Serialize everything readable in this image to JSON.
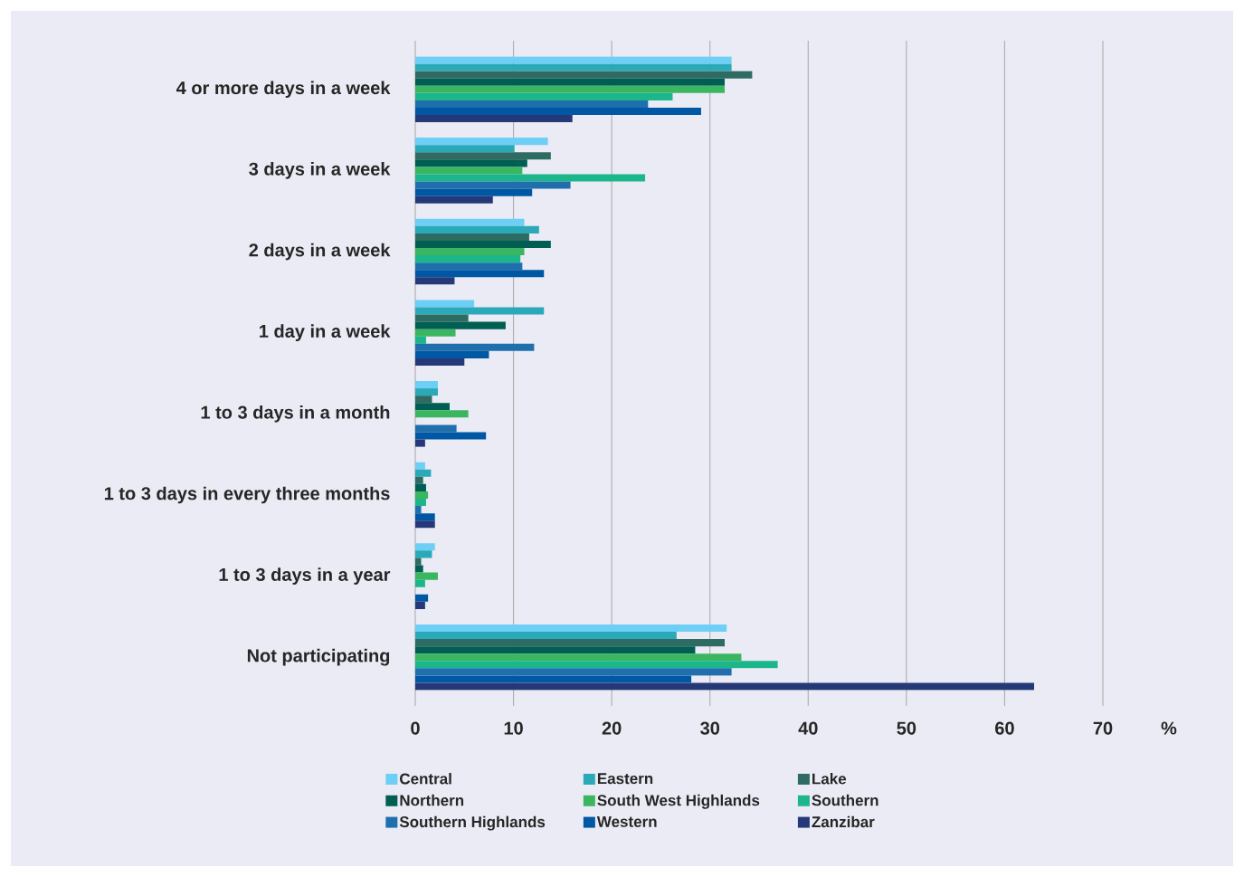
{
  "chart_data": {
    "type": "bar",
    "orientation": "horizontal",
    "categories": [
      "4 or more days in a week",
      "3 days in a week",
      "2 days in a week",
      "1 day in a week",
      "1 to 3 days in a month",
      "1 to 3 days in every three months",
      "1 to 3 days in a year",
      "Not participating"
    ],
    "series": [
      {
        "name": "Central",
        "color": "#6dcff6",
        "values": [
          32.2,
          13.5,
          11.1,
          6.0,
          2.3,
          1.0,
          2.0,
          31.7
        ]
      },
      {
        "name": "Eastern",
        "color": "#2aa9b8",
        "values": [
          32.2,
          10.1,
          12.6,
          13.1,
          2.3,
          1.6,
          1.7,
          26.6
        ]
      },
      {
        "name": "Lake",
        "color": "#2e6b63",
        "values": [
          34.3,
          13.8,
          11.6,
          5.4,
          1.7,
          0.8,
          0.6,
          31.5
        ]
      },
      {
        "name": "Northern",
        "color": "#005e53",
        "values": [
          31.5,
          11.4,
          13.8,
          9.2,
          3.5,
          1.1,
          0.8,
          28.5
        ]
      },
      {
        "name": "South West Highlands",
        "color": "#3bb660",
        "values": [
          31.5,
          10.9,
          11.1,
          4.1,
          5.4,
          1.3,
          2.3,
          33.2
        ]
      },
      {
        "name": "Southern",
        "color": "#1bb68a",
        "values": [
          26.2,
          23.4,
          10.7,
          1.1,
          null,
          1.1,
          1.0,
          36.9
        ]
      },
      {
        "name": "Southern Highlands",
        "color": "#1f6fad",
        "values": [
          23.7,
          15.8,
          10.9,
          12.1,
          4.2,
          0.6,
          null,
          32.2
        ]
      },
      {
        "name": "Western",
        "color": "#0057a3",
        "values": [
          29.1,
          11.9,
          13.1,
          7.5,
          7.2,
          2.0,
          1.3,
          28.1
        ]
      },
      {
        "name": "Zanzibar",
        "color": "#253878",
        "values": [
          16.0,
          7.9,
          4.0,
          5.0,
          1.0,
          2.0,
          1.0,
          63.0
        ]
      }
    ],
    "xlabel": "%",
    "xlim": [
      0,
      70
    ],
    "xticks": [
      0,
      10,
      20,
      30,
      40,
      50,
      60,
      70
    ],
    "grid": "x",
    "legend": "bottom"
  }
}
